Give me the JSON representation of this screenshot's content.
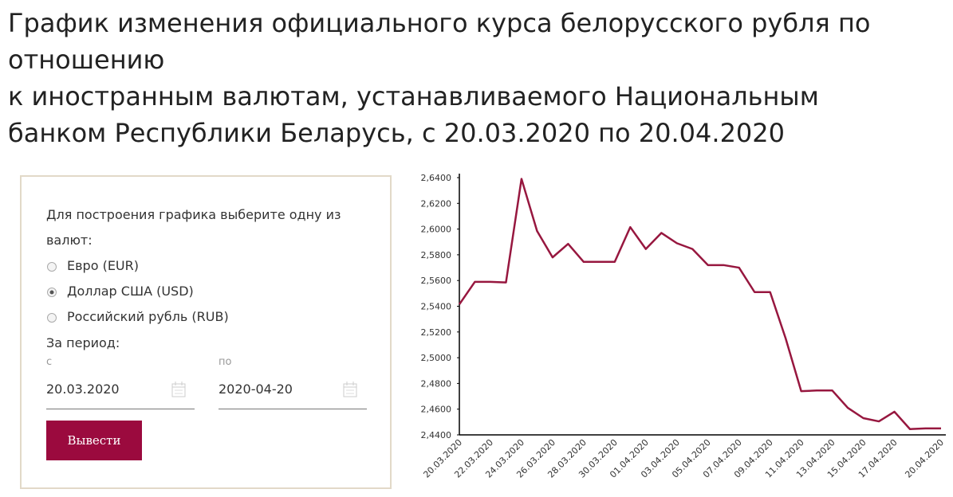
{
  "header": {
    "title_lines": [
      "График изменения официального курса белорусского рубля по",
      "отношению",
      "к иностранным валютам, устанавливаемого Национальным",
      "банком Республики Беларусь, с 20.03.2020 по 20.04.2020"
    ]
  },
  "form": {
    "prompt_lines": [
      "Для построения графика выберите одну из",
      "валют:"
    ],
    "options": [
      "Евро (EUR)",
      "Доллар США (USD)",
      "Российский рубль (RUB)"
    ],
    "selected": 1,
    "period_label": "За период:",
    "from_label": "с",
    "from_value": "20.03.2020",
    "to_label": "по",
    "to_value": "2020-04-20",
    "button": "Вывести"
  },
  "chart_data": {
    "type": "line",
    "color": "#97173f",
    "categories": [
      "20.03.2020",
      null,
      "22.03.2020",
      null,
      "24.03.2020",
      null,
      "26.03.2020",
      null,
      "28.03.2020",
      null,
      "30.03.2020",
      null,
      "01.04.2020",
      null,
      "03.04.2020",
      null,
      "05.04.2020",
      null,
      "07.04.2020",
      null,
      "09.04.2020",
      null,
      "11.04.2020",
      null,
      "13.04.2020",
      null,
      "15.04.2020",
      null,
      "17.04.2020",
      null,
      null,
      "20.04.2020"
    ],
    "series": [
      {
        "values": [
          2.5415,
          2.559,
          2.559,
          2.5585,
          2.639,
          2.5985,
          2.578,
          2.5885,
          2.5745,
          2.5745,
          2.5745,
          2.6015,
          2.5845,
          2.597,
          2.589,
          2.5845,
          2.572,
          2.572,
          2.57,
          2.551,
          2.551,
          2.515,
          2.474,
          2.4745,
          2.4745,
          2.461,
          2.453,
          2.4505,
          2.458,
          2.4445,
          2.445,
          2.445
        ]
      }
    ],
    "ylim": [
      2.44,
      2.64
    ],
    "yticks": [
      {
        "value": 2.44,
        "label": "2,4400"
      },
      {
        "value": 2.46,
        "label": "2,4600"
      },
      {
        "value": 2.48,
        "label": "2,4800"
      },
      {
        "value": 2.5,
        "label": "2,5000"
      },
      {
        "value": 2.52,
        "label": "2,5200"
      },
      {
        "value": 2.54,
        "label": "2,5400"
      },
      {
        "value": 2.56,
        "label": "2,5600"
      },
      {
        "value": 2.58,
        "label": "2,5800"
      },
      {
        "value": 2.6,
        "label": "2,6000"
      },
      {
        "value": 2.62,
        "label": "2,6200"
      },
      {
        "value": 2.64,
        "label": "2,6400"
      }
    ]
  }
}
